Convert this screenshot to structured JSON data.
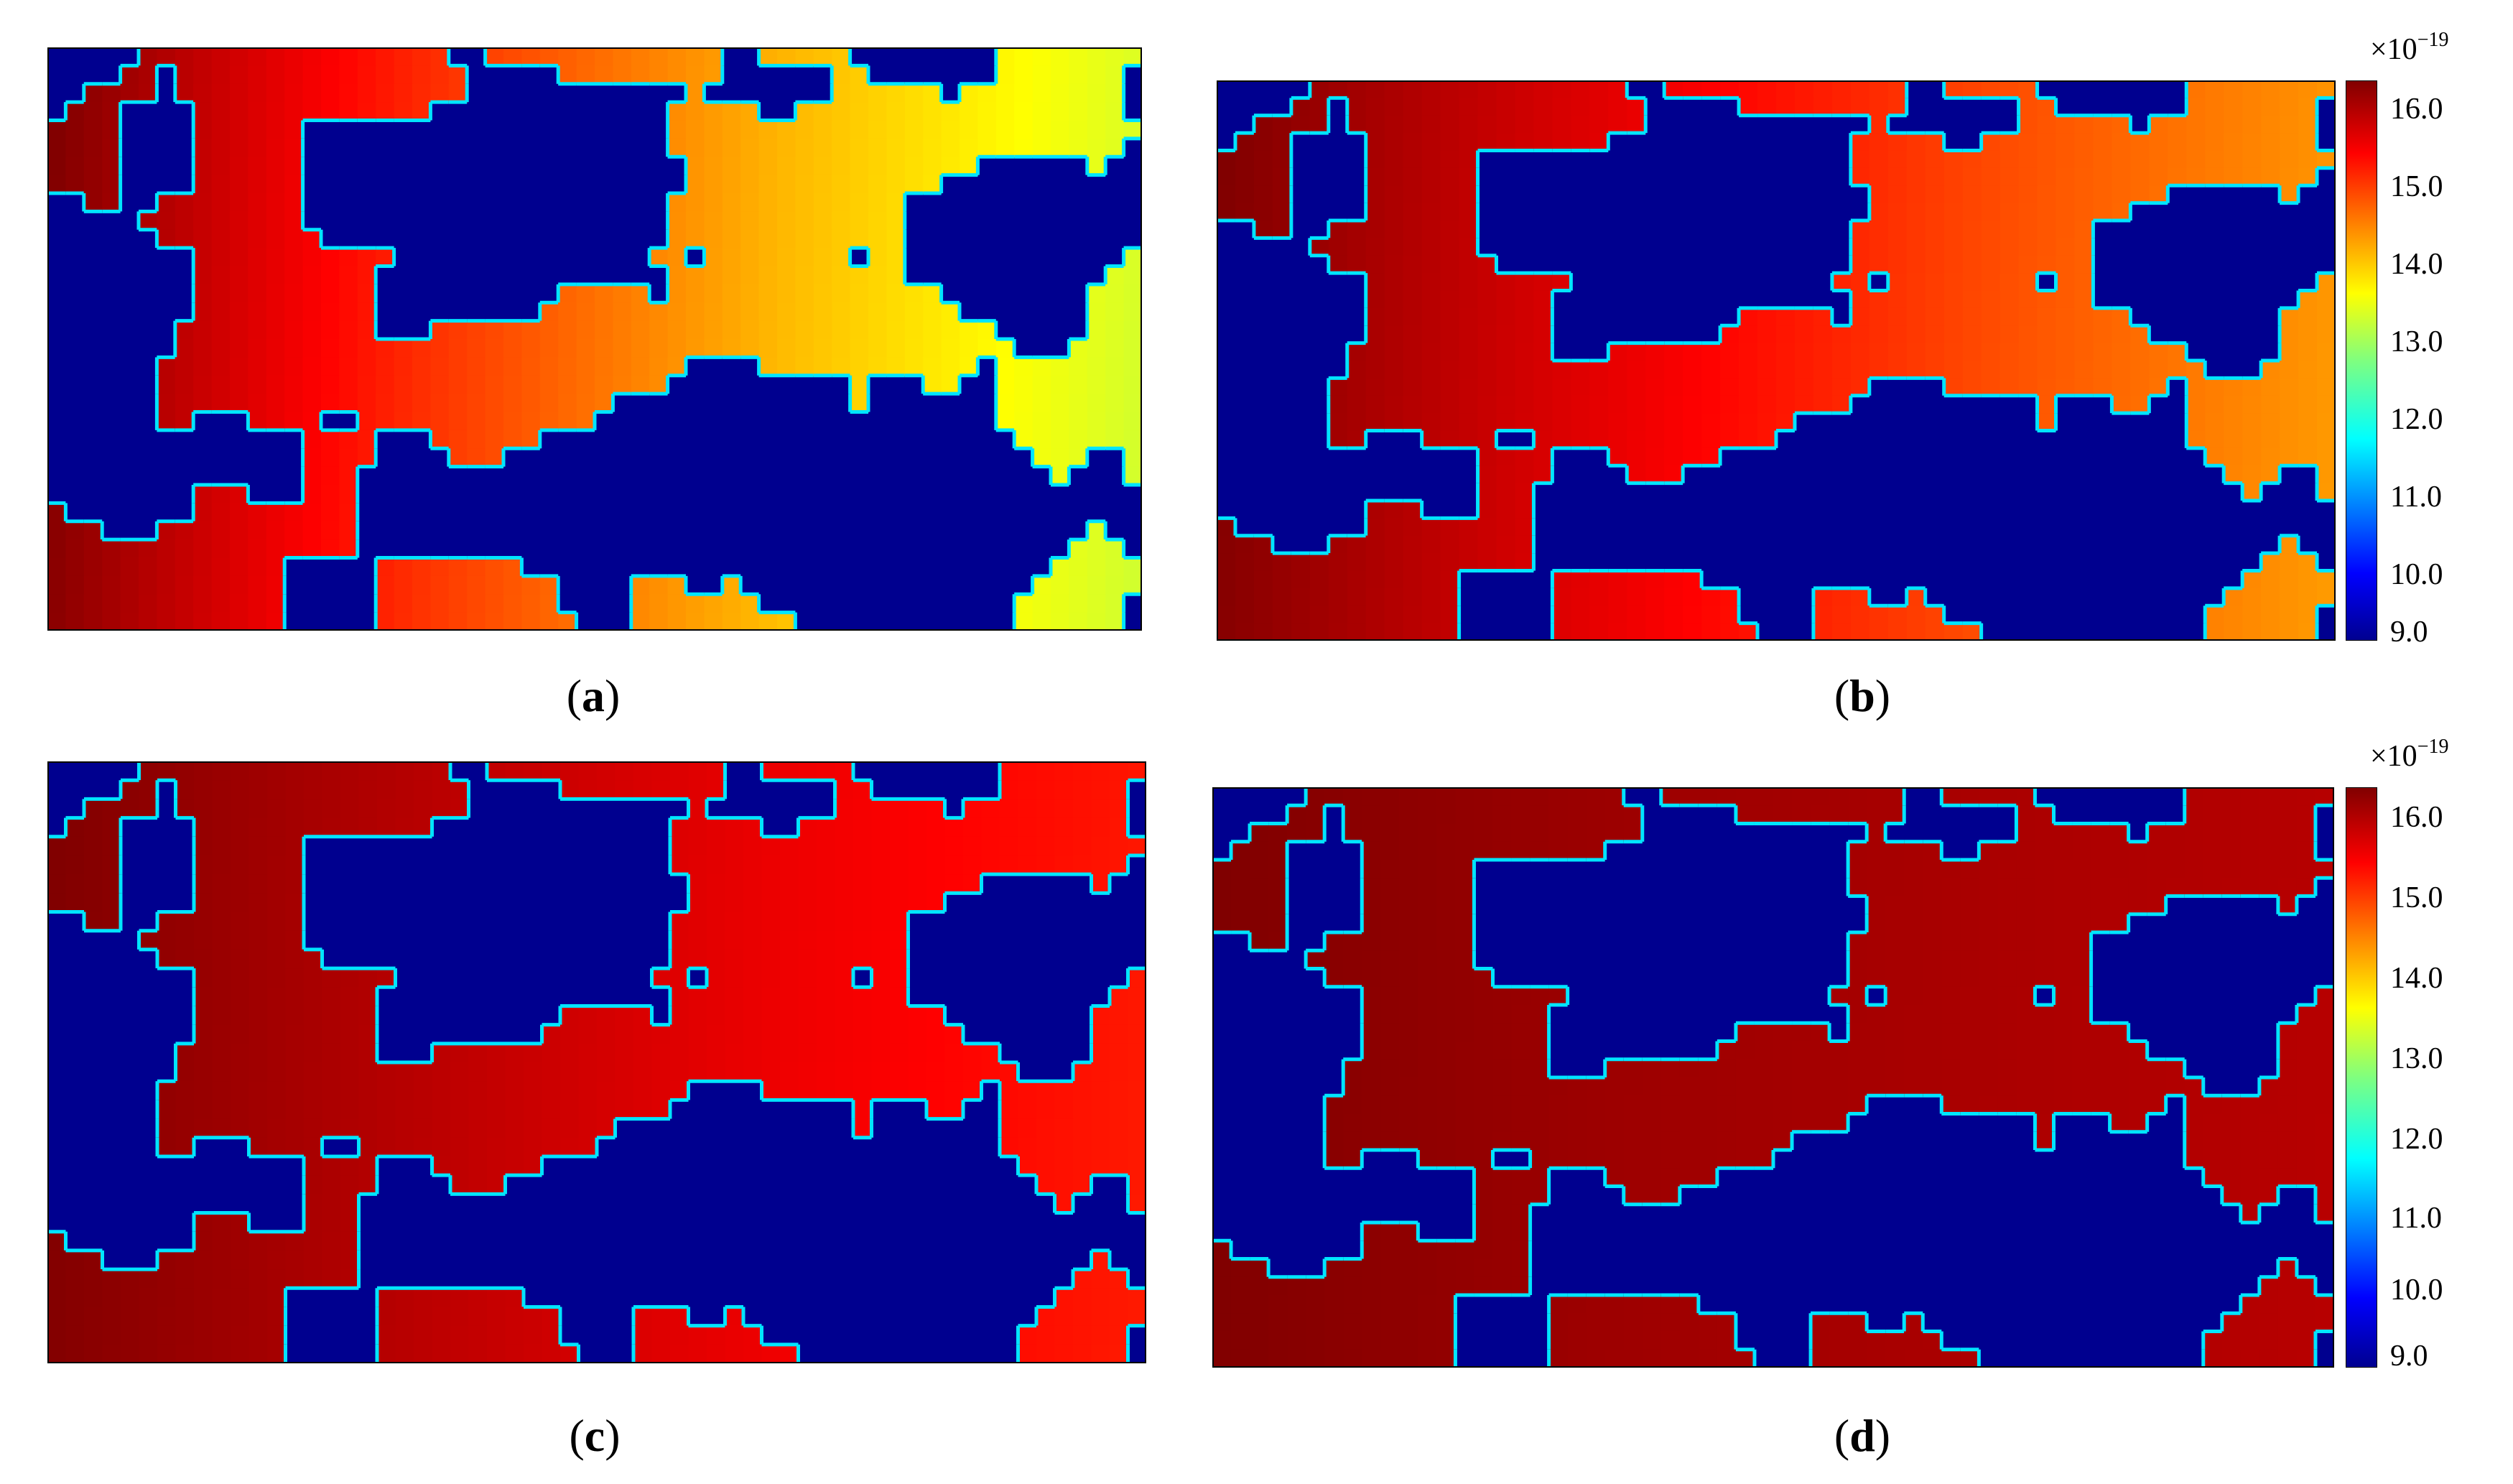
{
  "panels": [
    {
      "id": "a",
      "label": "a"
    },
    {
      "id": "b",
      "label": "b"
    },
    {
      "id": "c",
      "label": "c"
    },
    {
      "id": "d",
      "label": "d"
    }
  ],
  "colorbars": [
    {
      "panel": "b",
      "multiplier_base": "×10",
      "multiplier_exp": "−19",
      "ticks": [
        "16.0",
        "15.0",
        "14.0",
        "13.0",
        "12.0",
        "11.0",
        "10.0",
        "9.0"
      ]
    },
    {
      "panel": "d",
      "multiplier_base": "×10",
      "multiplier_exp": "−19",
      "ticks": [
        "16.0",
        "15.0",
        "14.0",
        "13.0",
        "12.0",
        "11.0",
        "10.0",
        "9.0"
      ]
    }
  ],
  "chart_data": {
    "type": "heatmap",
    "colormap": "jet",
    "value_range": [
      9.0,
      16.2
    ],
    "value_multiplier": "1e-19",
    "colors": {
      "low": "#00008f",
      "edge": "#00e5ff",
      "high": "#800000",
      "yellow": "#ffff00"
    },
    "note_free_field_levels": {
      "a": [
        16.2,
        15.0,
        14.0,
        13.2
      ],
      "b": [
        16.2,
        15.5,
        14.8,
        14.2
      ],
      "c": [
        16.2,
        15.8,
        15.4,
        15.1
      ],
      "d": [
        16.2,
        16.0,
        15.9,
        15.8
      ]
    }
  }
}
